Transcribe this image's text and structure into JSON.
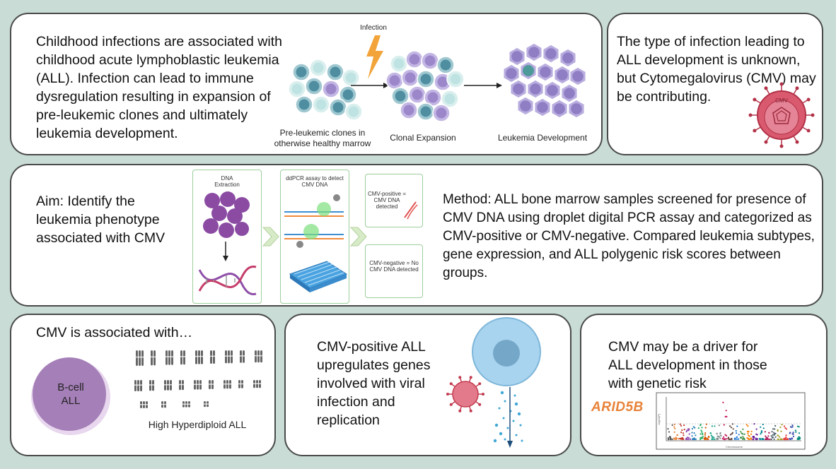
{
  "panel_intro": {
    "text": "Childhood infections are associated with childhood acute lymphoblastic leukemia (ALL). Infection can lead to immune dysregulation resulting in expansion of pre-leukemic clones and ultimately leukemia development.",
    "infection_label": "Infection",
    "stage1_label": "Pre-leukemic clones in otherwise healthy marrow",
    "stage2_label": "Clonal Expansion",
    "stage3_label": "Leukemia Development"
  },
  "panel_unknown": {
    "text": "The type of infection leading to ALL development is unknown, but Cytomegalovirus (CMV) may be contributing.",
    "virus_label": "CMV"
  },
  "panel_method": {
    "aim_text": "Aim: Identify the leukemia phenotype associated with CMV",
    "dna_extraction_label": "DNA Extraction",
    "ddpcr_label": "ddPCR assay to detect CMV DNA",
    "cmv_positive_label": "CMV-positive = CMV DNA detected",
    "cmv_negative_label": "CMV-negative = No CMV DNA detected",
    "method_text": "Method: ALL bone marrow samples screened for presence of CMV DNA using droplet digital PCR assay and categorized as CMV-positive or CMV-negative. Compared leukemia subtypes, gene expression, and ALL polygenic risk scores between groups."
  },
  "panel_associated": {
    "title": "CMV is associated with…",
    "bcell_label": "B-cell ALL",
    "karyotype_label": "High Hyperdiploid ALL"
  },
  "panel_genes": {
    "text": "CMV-positive ALL upregulates genes involved with viral infection and replication"
  },
  "panel_driver": {
    "text": "CMV may be a driver for ALL development in those with genetic risk",
    "gene_label": "ARID5B",
    "x_axis_label": "Chromosome",
    "y_axis_label": "-log10(P)"
  },
  "colors": {
    "background": "#c9dcd6",
    "cell_purple": "#9b87c9",
    "cell_teal": "#4e8ea0",
    "cell_light": "#bfe3e2",
    "virus_red": "#c23a4e",
    "bcell_purple": "#a57fb8",
    "gene_orange": "#e8833a",
    "dna_purple": "#8e4ea8",
    "pcr_blue": "#3e8fd1"
  }
}
